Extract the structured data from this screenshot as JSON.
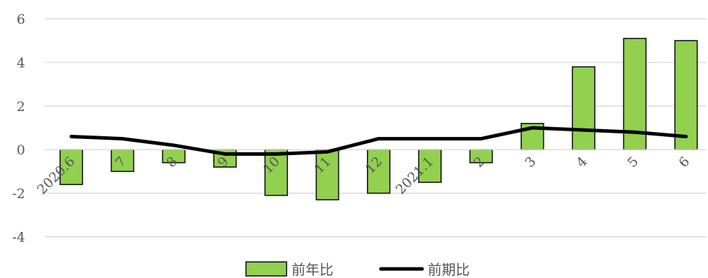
{
  "chart_data": {
    "type": "bar",
    "categories": [
      "2020.6",
      "7",
      "8",
      "9",
      "10",
      "11",
      "12",
      "2021.1",
      "2",
      "3",
      "4",
      "5",
      "6"
    ],
    "series": [
      {
        "name": "前年比",
        "type": "bar",
        "values": [
          -1.6,
          -1.0,
          -0.6,
          -0.8,
          -2.1,
          -2.3,
          -2.0,
          -1.5,
          -0.6,
          1.2,
          3.8,
          5.1,
          5.0
        ]
      },
      {
        "name": "前期比",
        "type": "line",
        "values": [
          0.6,
          0.5,
          0.2,
          -0.2,
          -0.2,
          -0.1,
          0.5,
          0.5,
          0.5,
          1.0,
          0.9,
          0.8,
          0.6
        ]
      }
    ],
    "yticks": [
      "6",
      "4",
      "2",
      "0",
      "-2",
      "-4"
    ],
    "ylim": [
      -4,
      6
    ],
    "grid": true,
    "legend_position": "bottom-center",
    "colors": {
      "bar": "#92D050",
      "line": "#000000"
    }
  }
}
